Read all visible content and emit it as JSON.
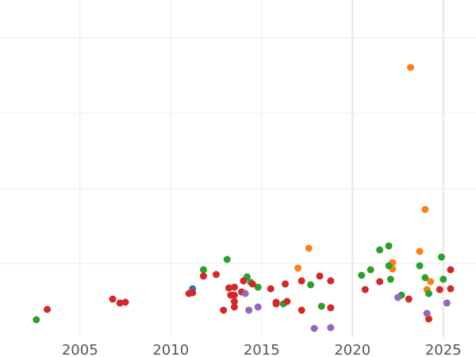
{
  "chart_data": {
    "type": "scatter",
    "title": "",
    "xlabel": "",
    "ylabel": "",
    "grid": true,
    "xlim": [
      2000.6,
      2026.8
    ],
    "ylim": [
      0,
      450
    ],
    "x_ticks": [
      2005,
      2010,
      2015,
      2020,
      2025
    ],
    "x_tick_labels": [
      "2005",
      "2010",
      "2015",
      "2020",
      "2025"
    ],
    "y_ticks": [
      48,
      143,
      238,
      332
    ],
    "series": [
      {
        "color": "#1f77b4",
        "points": [
          {
            "x": 2011.2,
            "y": 364
          }
        ]
      },
      {
        "color": "#ff7f0e",
        "points": [
          {
            "x": 2017.0,
            "y": 338
          },
          {
            "x": 2017.6,
            "y": 313
          },
          {
            "x": 2022.2,
            "y": 331
          },
          {
            "x": 2022.2,
            "y": 339
          },
          {
            "x": 2023.2,
            "y": 85
          },
          {
            "x": 2023.7,
            "y": 317
          },
          {
            "x": 2024.0,
            "y": 264
          },
          {
            "x": 2024.3,
            "y": 355
          },
          {
            "x": 2024.1,
            "y": 365
          }
        ]
      },
      {
        "color": "#2ca02c",
        "points": [
          {
            "x": 2002.6,
            "y": 403
          },
          {
            "x": 2011.8,
            "y": 340
          },
          {
            "x": 2013.1,
            "y": 327
          },
          {
            "x": 2014.2,
            "y": 349
          },
          {
            "x": 2014.4,
            "y": 356
          },
          {
            "x": 2014.8,
            "y": 362
          },
          {
            "x": 2016.2,
            "y": 383
          },
          {
            "x": 2017.7,
            "y": 359
          },
          {
            "x": 2018.3,
            "y": 386
          },
          {
            "x": 2020.5,
            "y": 347
          },
          {
            "x": 2021.0,
            "y": 340
          },
          {
            "x": 2021.5,
            "y": 315
          },
          {
            "x": 2022.0,
            "y": 310
          },
          {
            "x": 2022.0,
            "y": 335
          },
          {
            "x": 2022.1,
            "y": 352
          },
          {
            "x": 2022.7,
            "y": 372
          },
          {
            "x": 2023.7,
            "y": 335
          },
          {
            "x": 2024.0,
            "y": 350
          },
          {
            "x": 2024.2,
            "y": 370
          },
          {
            "x": 2024.9,
            "y": 324
          },
          {
            "x": 2025.0,
            "y": 352
          }
        ]
      },
      {
        "color": "#d62728",
        "points": [
          {
            "x": 2003.2,
            "y": 390
          },
          {
            "x": 2006.8,
            "y": 377
          },
          {
            "x": 2007.2,
            "y": 382
          },
          {
            "x": 2007.5,
            "y": 381
          },
          {
            "x": 2011.0,
            "y": 370
          },
          {
            "x": 2011.2,
            "y": 369
          },
          {
            "x": 2011.8,
            "y": 348
          },
          {
            "x": 2012.5,
            "y": 346
          },
          {
            "x": 2012.9,
            "y": 391
          },
          {
            "x": 2013.2,
            "y": 363
          },
          {
            "x": 2013.3,
            "y": 372
          },
          {
            "x": 2013.5,
            "y": 362
          },
          {
            "x": 2013.5,
            "y": 372
          },
          {
            "x": 2013.5,
            "y": 380
          },
          {
            "x": 2013.5,
            "y": 387
          },
          {
            "x": 2013.9,
            "y": 368
          },
          {
            "x": 2014.0,
            "y": 354
          },
          {
            "x": 2014.5,
            "y": 358
          },
          {
            "x": 2015.5,
            "y": 364
          },
          {
            "x": 2015.8,
            "y": 381
          },
          {
            "x": 2015.8,
            "y": 383
          },
          {
            "x": 2016.3,
            "y": 358
          },
          {
            "x": 2016.4,
            "y": 380
          },
          {
            "x": 2017.2,
            "y": 354
          },
          {
            "x": 2017.2,
            "y": 391
          },
          {
            "x": 2018.2,
            "y": 348
          },
          {
            "x": 2018.8,
            "y": 354
          },
          {
            "x": 2018.8,
            "y": 388
          },
          {
            "x": 2020.7,
            "y": 365
          },
          {
            "x": 2021.5,
            "y": 355
          },
          {
            "x": 2023.1,
            "y": 377
          },
          {
            "x": 2024.2,
            "y": 402
          },
          {
            "x": 2024.8,
            "y": 365
          },
          {
            "x": 2025.4,
            "y": 340
          },
          {
            "x": 2025.4,
            "y": 364
          }
        ]
      },
      {
        "color": "#9467bd",
        "points": [
          {
            "x": 2014.1,
            "y": 370
          },
          {
            "x": 2014.3,
            "y": 391
          },
          {
            "x": 2014.8,
            "y": 387
          },
          {
            "x": 2017.9,
            "y": 414
          },
          {
            "x": 2018.8,
            "y": 413
          },
          {
            "x": 2022.5,
            "y": 375
          },
          {
            "x": 2024.1,
            "y": 395
          },
          {
            "x": 2025.2,
            "y": 382
          }
        ]
      }
    ]
  }
}
